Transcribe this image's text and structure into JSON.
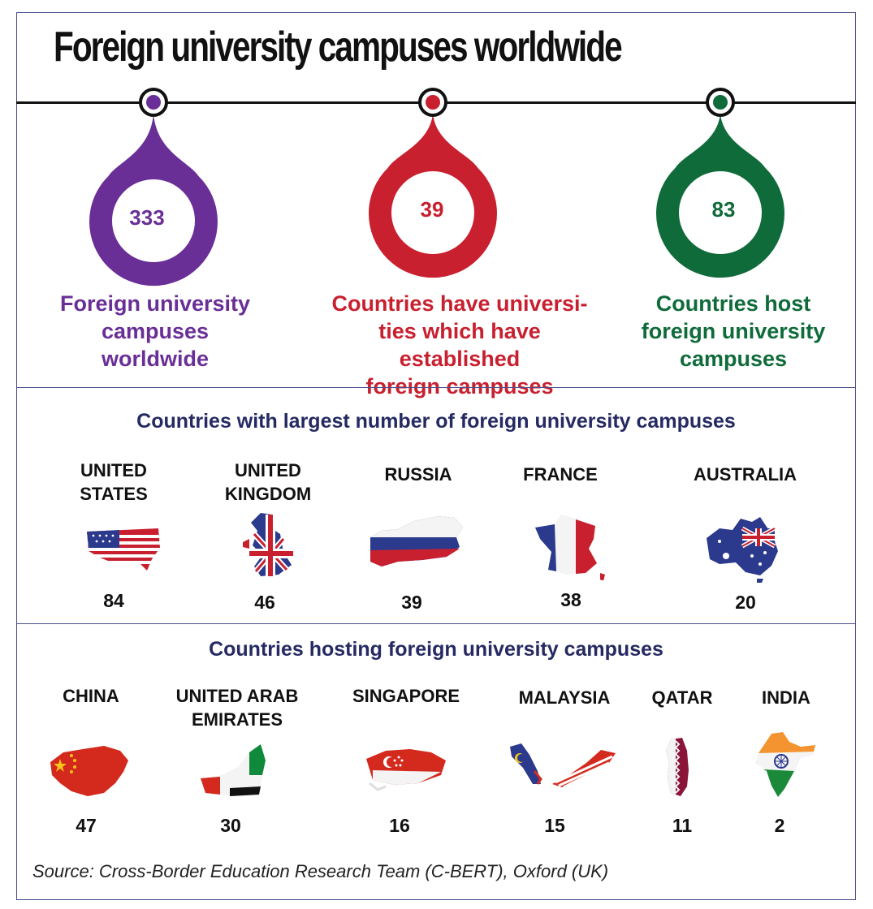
{
  "title": "Foreign university campuses worldwide",
  "stats": [
    {
      "value": "333",
      "lines": [
        "Foreign university",
        "campuses",
        "worldwide"
      ],
      "color": "#6a2f97",
      "center": "purple"
    },
    {
      "value": "39",
      "lines": [
        "Countries have universi-",
        "ties which have established",
        "foreign campuses"
      ],
      "color": "#c8202f",
      "center": "red"
    },
    {
      "value": "83",
      "lines": [
        "Countries host",
        "foreign university",
        "campuses"
      ],
      "color": "#0f6b3a",
      "center": "green"
    }
  ],
  "chart_data": [
    {
      "type": "table",
      "title": "Countries with largest number of foreign university campuses",
      "categories": [
        "UNITED STATES",
        "UNITED KINGDOM",
        "RUSSIA",
        "FRANCE",
        "AUSTRALIA"
      ],
      "values": [
        84,
        46,
        39,
        38,
        20
      ]
    },
    {
      "type": "table",
      "title": "Countries hosting foreign university campuses",
      "categories": [
        "CHINA",
        "UNITED ARAB EMIRATES",
        "SINGAPORE",
        "MALAYSIA",
        "QATAR",
        "INDIA"
      ],
      "values": [
        47,
        30,
        16,
        15,
        11,
        2
      ]
    }
  ],
  "source": "Source: Cross-Border Education Research Team (C-BERT), Oxford (UK)",
  "colors": {
    "frame": "#4a4f8a",
    "section_title": "#252a63"
  }
}
